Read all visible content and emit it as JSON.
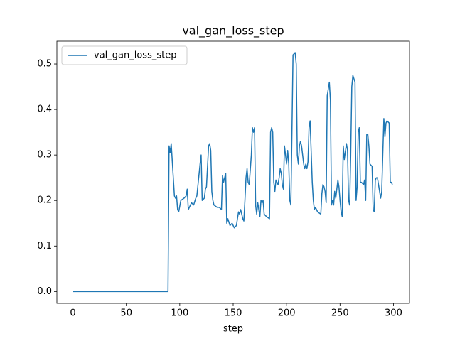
{
  "chart_data": {
    "type": "line",
    "title": "val_gan_loss_step",
    "xlabel": "step",
    "legend": "upper left",
    "grid": false,
    "xlim": [
      -15,
      315
    ],
    "ylim": [
      -0.026,
      0.55
    ],
    "xticks": [
      0,
      50,
      100,
      150,
      200,
      250,
      300
    ],
    "yticks": [
      {
        "value": 0,
        "label": "0.0"
      },
      0.1,
      0.2,
      0.3,
      0.4,
      0.5
    ],
    "x": [
      0,
      89,
      90,
      91,
      92,
      95,
      96,
      97,
      98,
      99,
      101,
      104,
      106,
      107,
      108,
      111,
      113,
      115,
      116,
      119,
      120,
      121,
      123,
      124,
      125,
      127,
      128,
      129,
      130,
      131,
      132,
      135,
      137,
      139,
      140,
      141,
      143,
      144,
      145,
      147,
      149,
      151,
      153,
      155,
      156,
      157,
      159,
      160,
      161,
      162,
      163,
      164,
      165,
      167,
      168,
      169,
      170,
      171,
      172,
      173,
      175,
      176,
      177,
      178,
      179,
      181,
      184,
      185,
      186,
      187,
      188,
      189,
      190,
      192,
      193,
      194,
      195,
      196,
      197,
      198,
      200,
      201,
      202,
      203,
      204,
      205,
      206,
      208,
      209,
      210,
      211,
      212,
      213,
      214,
      216,
      217,
      218,
      219,
      220,
      221,
      222,
      224,
      225,
      226,
      227,
      229,
      232,
      233,
      234,
      235,
      236,
      237,
      238,
      240,
      241,
      242,
      243,
      244,
      245,
      246,
      248,
      249,
      250,
      251,
      252,
      253,
      254,
      256,
      257,
      258,
      259,
      260,
      261,
      262,
      264,
      265,
      266,
      267,
      268,
      269,
      270,
      272,
      273,
      274,
      275,
      276,
      277,
      278,
      280,
      281,
      282,
      283,
      284,
      285,
      286,
      288,
      289,
      290,
      291,
      292,
      293,
      294,
      296,
      297,
      298,
      299
    ],
    "series": [
      {
        "name": "val_gan_loss_step",
        "color": "#1f77b4",
        "values": [
          0,
          0,
          0.32,
          0.305,
          0.325,
          0.21,
          0.205,
          0.21,
          0.18,
          0.175,
          0.2,
          0.205,
          0.21,
          0.225,
          0.18,
          0.195,
          0.19,
          0.205,
          0.21,
          0.28,
          0.3,
          0.2,
          0.205,
          0.225,
          0.23,
          0.32,
          0.325,
          0.31,
          0.22,
          0.2,
          0.19,
          0.185,
          0.185,
          0.18,
          0.255,
          0.24,
          0.26,
          0.15,
          0.16,
          0.145,
          0.15,
          0.14,
          0.145,
          0.175,
          0.17,
          0.18,
          0.16,
          0.155,
          0.2,
          0.25,
          0.27,
          0.24,
          0.235,
          0.3,
          0.36,
          0.35,
          0.36,
          0.19,
          0.17,
          0.195,
          0.165,
          0.2,
          0.195,
          0.2,
          0.17,
          0.165,
          0.16,
          0.35,
          0.36,
          0.35,
          0.24,
          0.22,
          0.245,
          0.235,
          0.25,
          0.27,
          0.26,
          0.235,
          0.225,
          0.32,
          0.28,
          0.31,
          0.28,
          0.2,
          0.19,
          0.35,
          0.52,
          0.525,
          0.5,
          0.3,
          0.28,
          0.32,
          0.33,
          0.32,
          0.28,
          0.27,
          0.28,
          0.27,
          0.285,
          0.36,
          0.375,
          0.24,
          0.2,
          0.18,
          0.185,
          0.175,
          0.17,
          0.215,
          0.235,
          0.23,
          0.22,
          0.195,
          0.43,
          0.46,
          0.42,
          0.19,
          0.2,
          0.19,
          0.22,
          0.205,
          0.245,
          0.23,
          0.2,
          0.175,
          0.165,
          0.32,
          0.29,
          0.325,
          0.31,
          0.2,
          0.19,
          0.3,
          0.45,
          0.475,
          0.46,
          0.2,
          0.23,
          0.35,
          0.36,
          0.24,
          0.24,
          0.235,
          0.245,
          0.2,
          0.345,
          0.345,
          0.32,
          0.28,
          0.275,
          0.18,
          0.175,
          0.245,
          0.25,
          0.25,
          0.235,
          0.205,
          0.22,
          0.3,
          0.38,
          0.34,
          0.37,
          0.375,
          0.37,
          0.24,
          0.24,
          0.235
        ]
      }
    ]
  }
}
